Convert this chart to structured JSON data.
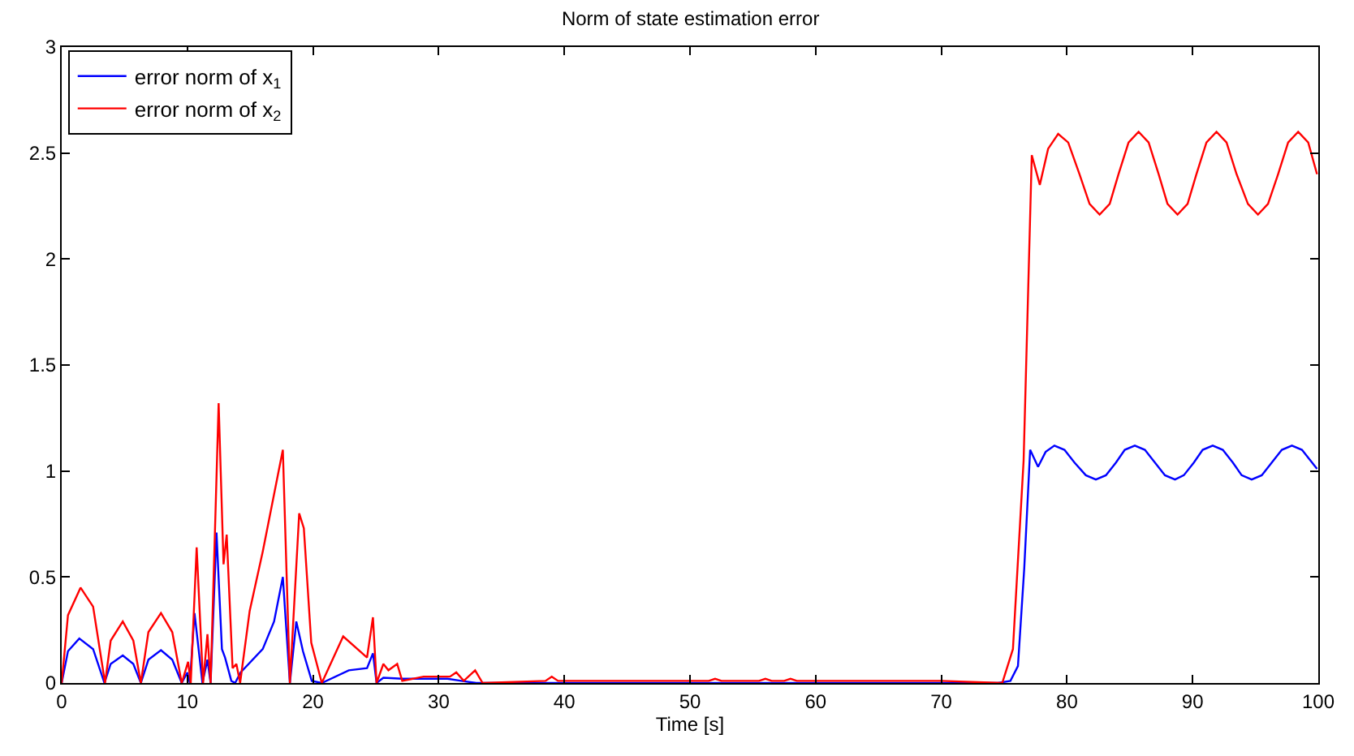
{
  "chart_data": {
    "type": "line",
    "title": "Norm of state estimation error",
    "xlabel": "Time [s]",
    "xlim": [
      0,
      100
    ],
    "xticks": [
      0,
      10,
      20,
      30,
      40,
      50,
      60,
      70,
      80,
      90,
      100
    ],
    "ylim": [
      0,
      3
    ],
    "yticks": [
      0,
      0.5,
      1,
      1.5,
      2,
      2.5,
      3
    ],
    "legend": "top left",
    "marker": "none",
    "line_style": "solid",
    "series": [
      {
        "name": "error norm of x$_{1}$",
        "color": "#0000ff",
        "x": [
          0,
          0.5,
          1.4,
          2.5,
          3.4,
          3.9,
          4.86,
          5.7,
          6.3,
          6.9,
          7.9,
          8.8,
          9.55,
          10.0,
          10.2,
          10.57,
          11.2,
          11.6,
          11.85,
          12.32,
          12.75,
          13.0,
          13.5,
          13.8,
          14.24,
          16.0,
          16.9,
          17.6,
          18.16,
          18.67,
          19.2,
          19.9,
          20.7,
          22.85,
          24.3,
          24.77,
          25.06,
          25.6,
          27.1,
          29.6,
          30.7,
          31.8,
          33,
          40,
          50,
          60,
          70,
          74.5,
          75.5,
          76.1,
          76.6,
          77.07,
          77.7,
          78.3,
          79.0,
          79.8,
          80.6,
          81.5,
          82.3,
          83.1,
          83.9,
          84.6,
          85.4,
          86.2,
          87.0,
          87.8,
          88.6,
          89.3,
          90.1,
          90.8,
          91.6,
          92.4,
          93.2,
          93.9,
          94.7,
          95.5,
          96.3,
          97.1,
          97.9,
          98.7,
          99.9
        ],
        "values": [
          0,
          0.15,
          0.21,
          0.16,
          0,
          0.09,
          0.13,
          0.09,
          0,
          0.11,
          0.155,
          0.11,
          0,
          0.05,
          0,
          0.33,
          0,
          0.11,
          0,
          0.71,
          0.16,
          0.12,
          0.01,
          0,
          0.05,
          0.16,
          0.29,
          0.5,
          0,
          0.29,
          0.15,
          0.01,
          0,
          0.06,
          0.07,
          0.14,
          0,
          0.025,
          0.02,
          0.02,
          0.02,
          0.01,
          0,
          0,
          0,
          0,
          0,
          0,
          0.01,
          0.08,
          0.54,
          1.1,
          1.02,
          1.09,
          1.12,
          1.1,
          1.04,
          0.98,
          0.96,
          0.98,
          1.04,
          1.1,
          1.12,
          1.1,
          1.04,
          0.98,
          0.96,
          0.98,
          1.04,
          1.1,
          1.12,
          1.1,
          1.04,
          0.98,
          0.96,
          0.98,
          1.04,
          1.1,
          1.12,
          1.1,
          1.01
        ]
      },
      {
        "name": "error norm of x$_{2}$",
        "color": "#ff0000",
        "x": [
          0,
          0.5,
          1.5,
          2.5,
          3.45,
          3.9,
          4.86,
          5.7,
          6.3,
          6.9,
          7.9,
          8.8,
          9.55,
          10.06,
          10.27,
          10.74,
          11.25,
          11.6,
          11.85,
          12.49,
          12.88,
          13.13,
          13.6,
          13.9,
          14.2,
          14.96,
          16.0,
          17.6,
          18.16,
          18.9,
          19.27,
          19.86,
          20.7,
          22.4,
          24.3,
          24.77,
          25.06,
          25.6,
          26.0,
          26.7,
          27.1,
          28.8,
          30.9,
          31.4,
          32,
          32.9,
          33.5,
          38.5,
          39,
          39.5,
          51.5,
          52,
          52.5,
          55.5,
          56,
          56.5,
          57.5,
          58,
          58.5,
          70,
          74.85,
          75.7,
          76.55,
          77.2,
          77.84,
          78.5,
          79.3,
          80.1,
          81.0,
          81.8,
          82.6,
          83.4,
          84.1,
          84.9,
          85.7,
          86.5,
          87.3,
          88.0,
          88.8,
          89.6,
          90.3,
          91.1,
          91.9,
          92.7,
          93.5,
          94.4,
          95.2,
          96.0,
          96.8,
          97.6,
          98.4,
          99.2,
          99.9
        ],
        "values": [
          0,
          0.32,
          0.45,
          0.36,
          0,
          0.2,
          0.29,
          0.2,
          0,
          0.24,
          0.33,
          0.24,
          0,
          0.1,
          0,
          0.64,
          0,
          0.23,
          0,
          1.32,
          0.56,
          0.7,
          0.07,
          0.09,
          0,
          0.34,
          0.62,
          1.1,
          0,
          0.8,
          0.73,
          0.19,
          0,
          0.22,
          0.12,
          0.31,
          0,
          0.09,
          0.06,
          0.09,
          0.01,
          0.03,
          0.03,
          0.05,
          0.01,
          0.06,
          0,
          0.01,
          0.03,
          0.01,
          0.01,
          0.02,
          0.01,
          0.01,
          0.02,
          0.01,
          0.01,
          0.02,
          0.01,
          0.01,
          0,
          0.16,
          1.05,
          2.49,
          2.35,
          2.52,
          2.59,
          2.55,
          2.4,
          2.26,
          2.21,
          2.26,
          2.4,
          2.55,
          2.6,
          2.55,
          2.4,
          2.26,
          2.21,
          2.26,
          2.4,
          2.55,
          2.6,
          2.55,
          2.4,
          2.26,
          2.21,
          2.26,
          2.4,
          2.55,
          2.6,
          2.55,
          2.4
        ]
      }
    ]
  }
}
